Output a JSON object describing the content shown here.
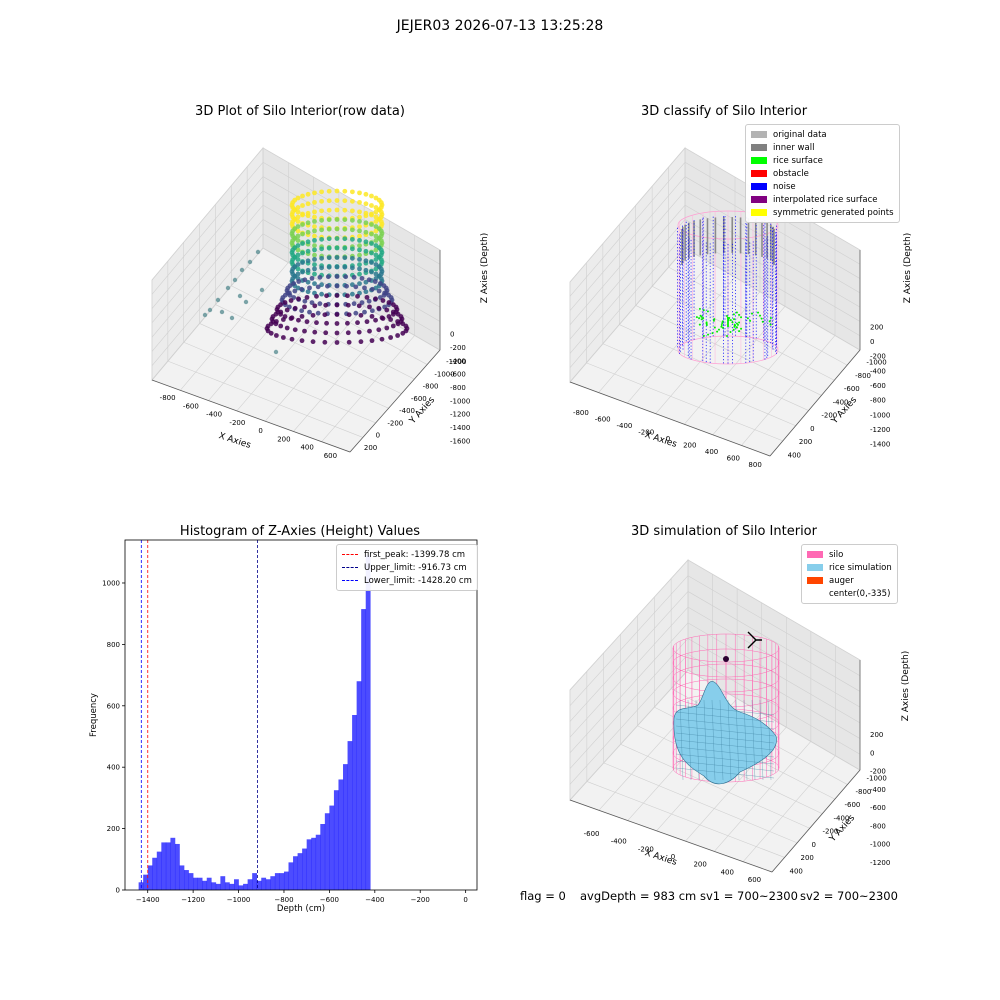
{
  "figure_title": "JEJER03 2026-07-13 13:25:28",
  "status": {
    "flag": "flag = 0",
    "avg_depth": "avgDepth = 983 cm",
    "sv1": "sv1 = 700~2300",
    "sv2": "sv2 = 700~2300"
  },
  "chart_data": [
    {
      "type": "scatter",
      "title": "3D Plot of Silo Interior(row data)",
      "xlabel": "X Axies",
      "ylabel": "Y Axies",
      "zlabel": "Z Axies (Depth)",
      "x_ticks": [
        "-800",
        "-600",
        "-400",
        "-200",
        "0",
        "200",
        "400",
        "600"
      ],
      "y_ticks": [
        "200",
        "0",
        "-200",
        "-400",
        "-600",
        "-800",
        "-1000",
        "-1200"
      ],
      "z_ticks": [
        "0",
        "-200",
        "-400",
        "-600",
        "-800",
        "-1000",
        "-1200",
        "-1400",
        "-1600"
      ],
      "colormap": "viridis",
      "grid": true
    },
    {
      "type": "scatter",
      "title": "3D classify of Silo Interior",
      "xlabel": "X Axies",
      "ylabel": "Y Axies",
      "zlabel": "Z Axies (Depth)",
      "x_ticks": [
        "-800",
        "-600",
        "-400",
        "-200",
        "0",
        "200",
        "400",
        "600",
        "800"
      ],
      "y_ticks": [
        "400",
        "200",
        "0",
        "-200",
        "-400",
        "-600",
        "-800",
        "-1000"
      ],
      "z_ticks": [
        "200",
        "0",
        "-200",
        "-400",
        "-600",
        "-800",
        "-1000",
        "-1200",
        "-1400"
      ],
      "legend_position": "top-right",
      "legend": [
        {
          "label": "original data",
          "color": "#b3b3b3"
        },
        {
          "label": "inner wall",
          "color": "#808080"
        },
        {
          "label": "rice surface",
          "color": "#00ff00"
        },
        {
          "label": "obstacle",
          "color": "#ff0000"
        },
        {
          "label": "noise",
          "color": "#0000ff"
        },
        {
          "label": "interpolated rice surface",
          "color": "#800080"
        },
        {
          "label": "symmetric generated points",
          "color": "#ffff00"
        }
      ],
      "grid": true
    },
    {
      "type": "bar",
      "title": "Histogram of Z-Axies (Height) Values",
      "xlabel": "Depth (cm)",
      "ylabel": "Frequency",
      "xlim": [
        -1500,
        50
      ],
      "ylim": [
        0,
        1140
      ],
      "x_ticks": [
        -1400,
        -1200,
        -1000,
        -800,
        -600,
        -400,
        -200,
        0
      ],
      "y_ticks": [
        0,
        200,
        400,
        600,
        800,
        1000
      ],
      "bin_width": 20,
      "bin_start": -1440,
      "counts": [
        25,
        50,
        80,
        105,
        125,
        155,
        155,
        170,
        150,
        80,
        65,
        55,
        40,
        40,
        30,
        40,
        25,
        20,
        45,
        25,
        20,
        35,
        15,
        20,
        35,
        55,
        30,
        40,
        35,
        45,
        55,
        55,
        60,
        90,
        110,
        120,
        135,
        165,
        170,
        180,
        215,
        250,
        275,
        325,
        360,
        410,
        485,
        570,
        680,
        915,
        1090
      ],
      "bar_color": "#0000ff",
      "reference_lines": [
        {
          "label": "first_peak: -1399.78 cm",
          "value": -1399.78,
          "color": "#ff0000"
        },
        {
          "label": "Upper_limit: -916.73 cm",
          "value": -916.73,
          "color": "#00008b"
        },
        {
          "label": "Lower_limit: -1428.20 cm",
          "value": -1428.2,
          "color": "#0000ff"
        }
      ],
      "legend_position": "top-right"
    },
    {
      "type": "surface",
      "title": "3D simulation of Silo Interior",
      "xlabel": "X Axies",
      "ylabel": "Y Axies",
      "zlabel": "Z Axies (Depth)",
      "x_ticks": [
        "-600",
        "-400",
        "-200",
        "0",
        "200",
        "400",
        "600"
      ],
      "y_ticks": [
        "400",
        "200",
        "0",
        "-200",
        "-400",
        "-600",
        "-800",
        "-1000"
      ],
      "z_ticks": [
        "200",
        "0",
        "-200",
        "-400",
        "-600",
        "-800",
        "-1000",
        "-1200"
      ],
      "legend_position": "top-right",
      "legend": [
        {
          "label": "silo",
          "color": "#ff69b4"
        },
        {
          "label": "rice simulation",
          "color": "#87ceeb"
        },
        {
          "label": "auger",
          "color": "#ff4500"
        },
        {
          "label": "center(0,-335)",
          "color": "none"
        }
      ],
      "grid": true
    }
  ]
}
